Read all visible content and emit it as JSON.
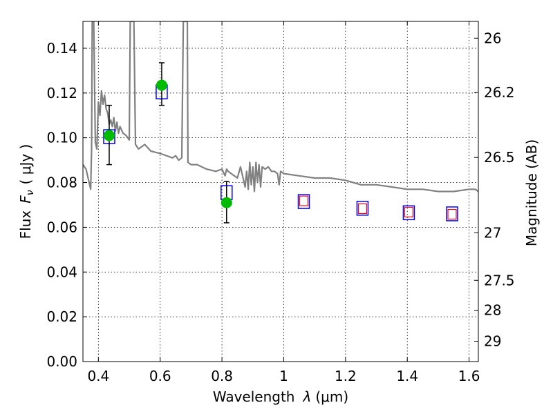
{
  "chart_data": {
    "type": "scatter",
    "xlabel": "Wavelength",
    "xlabel_symbol": "λ",
    "xlabel_unit": "(μm)",
    "ylabel": "Flux",
    "ylabel_symbol": "F",
    "ylabel_subscript": "ν",
    "ylabel_unit": "( μJy )",
    "y2label": "Magnitude (AB)",
    "xlim": [
      0.35,
      1.63
    ],
    "ylim": [
      0.0,
      0.152
    ],
    "grid": true,
    "x_ticks": [
      0.4,
      0.6,
      0.8,
      1.0,
      1.2,
      1.4,
      1.6
    ],
    "x_tick_labels": [
      "0.4",
      "0.6",
      "0.8",
      "1",
      "1.2",
      "1.4",
      "1.6"
    ],
    "y_ticks": [
      0.0,
      0.02,
      0.04,
      0.06,
      0.08,
      0.1,
      0.12,
      0.14
    ],
    "y_tick_labels": [
      "0.00",
      "0.02",
      "0.04",
      "0.06",
      "0.08",
      "0.10",
      "0.12",
      "0.14"
    ],
    "y2_ticks": [
      {
        "label": "26",
        "flux": 0.1445
      },
      {
        "label": "26.2",
        "flux": 0.1202
      },
      {
        "label": "26.5",
        "flux": 0.0912
      },
      {
        "label": "27",
        "flux": 0.0575
      },
      {
        "label": "27.5",
        "flux": 0.0363
      },
      {
        "label": "28",
        "flux": 0.0229
      },
      {
        "label": "29",
        "flux": 0.0091
      }
    ],
    "series": [
      {
        "kind": "model_spectrum",
        "color": "#808080",
        "x": [
          0.35,
          0.36,
          0.37,
          0.375,
          0.378,
          0.38,
          0.385,
          0.39,
          0.395,
          0.4,
          0.405,
          0.41,
          0.415,
          0.42,
          0.425,
          0.43,
          0.435,
          0.44,
          0.445,
          0.45,
          0.455,
          0.46,
          0.465,
          0.47,
          0.48,
          0.49,
          0.5,
          0.503,
          0.505,
          0.507,
          0.51,
          0.515,
          0.52,
          0.53,
          0.55,
          0.57,
          0.6,
          0.62,
          0.64,
          0.65,
          0.66,
          0.67,
          0.675,
          0.678,
          0.68,
          0.685,
          0.688,
          0.69,
          0.7,
          0.72,
          0.75,
          0.78,
          0.8,
          0.81,
          0.815,
          0.82,
          0.83,
          0.84,
          0.85,
          0.86,
          0.87,
          0.875,
          0.88,
          0.885,
          0.89,
          0.895,
          0.9,
          0.905,
          0.91,
          0.915,
          0.92,
          0.925,
          0.93,
          0.94,
          0.95,
          0.96,
          0.97,
          0.98,
          0.985,
          0.99,
          1.0,
          1.05,
          1.1,
          1.15,
          1.2,
          1.25,
          1.3,
          1.35,
          1.4,
          1.45,
          1.5,
          1.55,
          1.6,
          1.62,
          1.63
        ],
        "y": [
          0.088,
          0.086,
          0.08,
          0.077,
          0.095,
          0.152,
          0.152,
          0.098,
          0.095,
          0.116,
          0.11,
          0.121,
          0.115,
          0.119,
          0.113,
          0.111,
          0.106,
          0.108,
          0.105,
          0.109,
          0.103,
          0.107,
          0.102,
          0.105,
          0.102,
          0.101,
          0.099,
          0.152,
          0.152,
          0.152,
          0.152,
          0.152,
          0.097,
          0.095,
          0.097,
          0.094,
          0.093,
          0.092,
          0.091,
          0.092,
          0.09,
          0.091,
          0.152,
          0.152,
          0.152,
          0.152,
          0.152,
          0.089,
          0.088,
          0.088,
          0.086,
          0.085,
          0.086,
          0.083,
          0.086,
          0.085,
          0.084,
          0.083,
          0.082,
          0.087,
          0.081,
          0.078,
          0.085,
          0.077,
          0.089,
          0.079,
          0.087,
          0.076,
          0.089,
          0.08,
          0.088,
          0.078,
          0.087,
          0.086,
          0.087,
          0.085,
          0.085,
          0.084,
          0.079,
          0.085,
          0.084,
          0.083,
          0.082,
          0.082,
          0.081,
          0.079,
          0.079,
          0.078,
          0.077,
          0.077,
          0.076,
          0.076,
          0.077,
          0.077,
          0.076
        ]
      },
      {
        "kind": "model_photometry",
        "marker": "open_square_blue",
        "color": "#0000ff",
        "x": [
          0.435,
          0.605,
          0.815,
          1.065,
          1.255,
          1.405,
          1.545
        ],
        "y": [
          0.1005,
          0.1205,
          0.0755,
          0.0715,
          0.0685,
          0.0665,
          0.066
        ]
      },
      {
        "kind": "model_photometry_inner",
        "marker": "open_square_red",
        "color": "#ff0000",
        "x": [
          1.065,
          1.255,
          1.405,
          1.545
        ],
        "y": [
          0.0718,
          0.0683,
          0.0668,
          0.0658
        ]
      },
      {
        "kind": "observed",
        "marker": "filled_circle_green",
        "color": "#00bb00",
        "x": [
          0.435,
          0.605,
          0.815
        ],
        "y": [
          0.101,
          0.1235,
          0.071
        ],
        "err_low": [
          0.088,
          0.1145,
          0.062
        ],
        "err_high": [
          0.1145,
          0.1335,
          0.0805
        ]
      }
    ]
  }
}
